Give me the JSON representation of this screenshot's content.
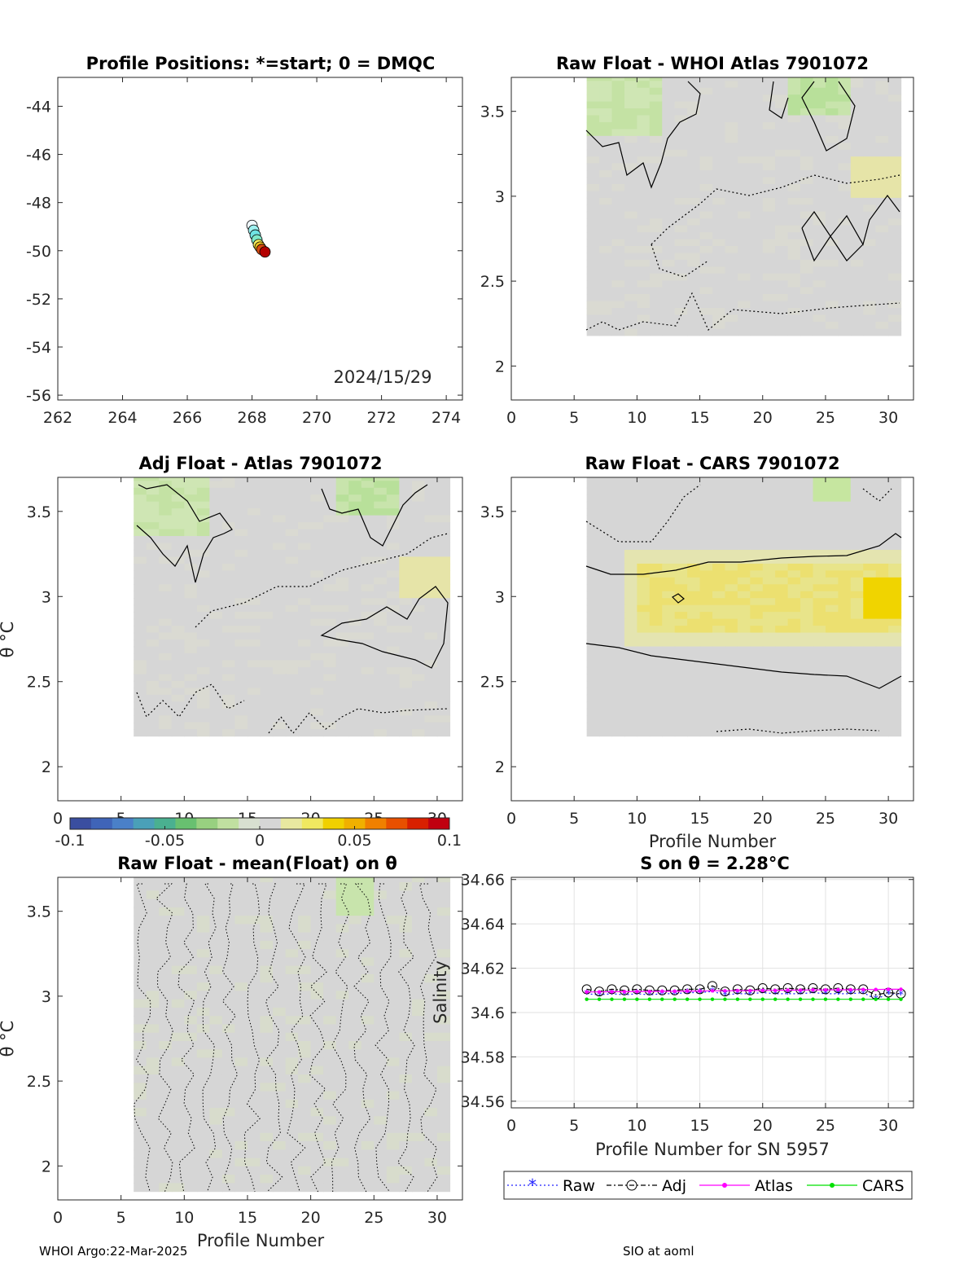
{
  "footer": {
    "left": "WHOI Argo:22-Mar-2025",
    "right": "SIO at aoml"
  },
  "chart_data": [
    {
      "type": "scatter",
      "title": "Profile Positions: *=start; 0 = DMQC",
      "annotation": "2024/15/29",
      "xlim": [
        262,
        274.5
      ],
      "ylim": [
        -56.2,
        -42.8
      ],
      "xticks": [
        262,
        264,
        266,
        268,
        270,
        272,
        274
      ],
      "yticks": [
        -44,
        -46,
        -48,
        -50,
        -52,
        -54,
        -56
      ],
      "points": [
        {
          "x": 268.0,
          "y": -48.95,
          "color": "#f0f8ff"
        },
        {
          "x": 268.05,
          "y": -49.15,
          "color": "#9ef0f0"
        },
        {
          "x": 268.1,
          "y": -49.35,
          "color": "#6fe3e3"
        },
        {
          "x": 268.15,
          "y": -49.55,
          "color": "#7fe8c8"
        },
        {
          "x": 268.2,
          "y": -49.75,
          "color": "#f5f060"
        },
        {
          "x": 268.25,
          "y": -49.85,
          "color": "#f0c020"
        },
        {
          "x": 268.3,
          "y": -49.95,
          "color": "#d84a10"
        },
        {
          "x": 268.4,
          "y": -50.05,
          "color": "#b30000"
        }
      ]
    },
    {
      "type": "heatmap",
      "title": "Raw Float - WHOI Atlas  7901072",
      "xlim": [
        0,
        32
      ],
      "ylim": [
        1.8,
        3.7
      ],
      "xticks": [
        0,
        5,
        10,
        15,
        20,
        25,
        30
      ],
      "yticks": [
        2,
        2.5,
        3,
        3.5
      ],
      "data_x_range": [
        6,
        31
      ],
      "data_y_range": [
        2.18,
        3.72
      ]
    },
    {
      "type": "heatmap",
      "title": "Adj Float - Atlas  7901072",
      "ylabel": "θ °C",
      "xlim": [
        0,
        32
      ],
      "ylim": [
        1.8,
        3.7
      ],
      "xticks": [
        0,
        5,
        10,
        15,
        20,
        25,
        30
      ],
      "yticks": [
        2,
        2.5,
        3,
        3.5
      ],
      "data_x_range": [
        6,
        31
      ],
      "data_y_range": [
        2.18,
        3.72
      ]
    },
    {
      "type": "heatmap",
      "title": "Raw Float - CARS  7901072",
      "xlabel": "Profile Number",
      "xlim": [
        0,
        32
      ],
      "ylim": [
        1.8,
        3.7
      ],
      "xticks": [
        0,
        5,
        10,
        15,
        20,
        25,
        30
      ],
      "yticks": [
        2,
        2.5,
        3,
        3.5
      ],
      "data_x_range": [
        6,
        31
      ],
      "data_y_range": [
        2.18,
        3.72
      ]
    },
    {
      "type": "heatmap",
      "title": "Raw Float - mean(Float) on θ",
      "xlabel": "Profile Number",
      "ylabel": "θ °C",
      "xlim": [
        0,
        32
      ],
      "ylim": [
        1.8,
        3.7
      ],
      "xticks": [
        0,
        5,
        10,
        15,
        20,
        25,
        30
      ],
      "yticks": [
        2,
        2.5,
        3,
        3.5
      ],
      "data_x_range": [
        6,
        31
      ],
      "data_y_range": [
        1.85,
        3.72
      ]
    },
    {
      "type": "line",
      "title": "S on θ = 2.28°C",
      "xlabel": "Profile Number for SN 5957",
      "ylabel": "Salinity",
      "xlim": [
        0,
        32
      ],
      "ylim": [
        34.557,
        34.661
      ],
      "xticks": [
        0,
        5,
        10,
        15,
        20,
        25,
        30
      ],
      "yticks": [
        34.56,
        34.58,
        34.6,
        34.62,
        34.64,
        34.66
      ],
      "grid": true,
      "legend": "bottom",
      "x": [
        6,
        7,
        8,
        9,
        10,
        11,
        12,
        13,
        14,
        15,
        16,
        17,
        18,
        19,
        20,
        21,
        22,
        23,
        24,
        25,
        26,
        27,
        28,
        29,
        30,
        31
      ],
      "series": [
        {
          "name": "Raw",
          "color": "#2020ff",
          "values": [
            34.6085,
            34.608,
            34.6085,
            34.608,
            34.6085,
            34.608,
            34.6085,
            34.6085,
            34.609,
            34.609,
            34.6095,
            34.608,
            34.6085,
            34.6085,
            34.609,
            34.6085,
            34.6085,
            34.6085,
            34.609,
            34.6085,
            34.6085,
            34.6085,
            34.609,
            34.606,
            34.6085,
            34.608
          ]
        },
        {
          "name": "Adj",
          "color": "#000000",
          "values": [
            34.6105,
            34.6095,
            34.6105,
            34.61,
            34.6105,
            34.61,
            34.61,
            34.61,
            34.6105,
            34.6105,
            34.612,
            34.6095,
            34.6105,
            34.61,
            34.611,
            34.6105,
            34.611,
            34.6105,
            34.611,
            34.6105,
            34.611,
            34.6105,
            34.6105,
            34.608,
            34.609,
            34.6085
          ]
        },
        {
          "name": "Atlas",
          "color": "#ff00ff",
          "values": [
            34.6093,
            34.6093,
            34.6094,
            34.6094,
            34.6095,
            34.6095,
            34.6096,
            34.6096,
            34.6097,
            34.6097,
            34.6098,
            34.6098,
            34.6099,
            34.6099,
            34.61,
            34.61,
            34.6101,
            34.6101,
            34.6102,
            34.6102,
            34.6103,
            34.6103,
            34.6104,
            34.6104,
            34.6105,
            34.6105
          ]
        },
        {
          "name": "CARS",
          "color": "#00e000",
          "values": [
            34.606,
            34.606,
            34.606,
            34.606,
            34.606,
            34.606,
            34.606,
            34.606,
            34.606,
            34.606,
            34.606,
            34.606,
            34.606,
            34.606,
            34.606,
            34.606,
            34.606,
            34.606,
            34.606,
            34.606,
            34.606,
            34.606,
            34.606,
            34.606,
            34.606,
            34.606
          ]
        }
      ]
    }
  ],
  "colorbar": {
    "min": -0.1,
    "max": 0.1,
    "ticks": [
      "-0.1",
      "-0.05",
      "0",
      "0.05",
      "0.1"
    ],
    "colors": [
      "#3a4ea0",
      "#3f64b8",
      "#4a80c8",
      "#4aa0b8",
      "#4ab090",
      "#68c070",
      "#98d080",
      "#c0e0a0",
      "#d8e0d0",
      "#d6d6d6",
      "#e8e8a0",
      "#f0e860",
      "#f0d000",
      "#f0b000",
      "#f08000",
      "#e85000",
      "#d82000",
      "#c00010"
    ]
  }
}
